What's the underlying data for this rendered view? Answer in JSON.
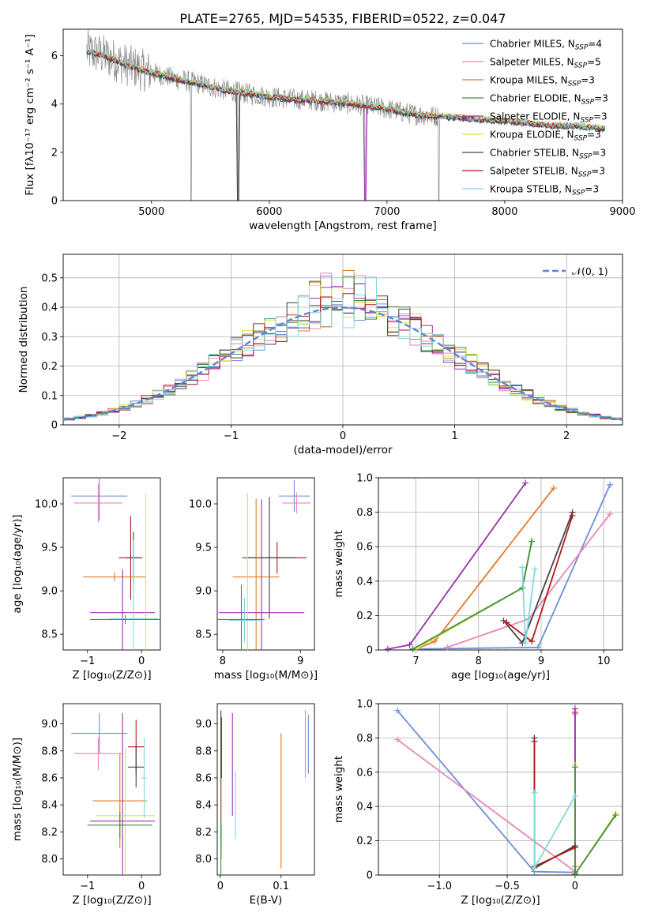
{
  "figure": {
    "title": "PLATE=2765, MJD=54535, FIBERID=0522, z=0.047"
  },
  "chart_data": [
    {
      "type": "line",
      "id": "spectrum",
      "xlabel": "wavelength [Angstrom, rest frame]",
      "ylabel": "Flux [fλ10⁻¹⁷ erg cm⁻² s⁻¹ A⁻¹]",
      "xlim": [
        4250,
        9000
      ],
      "ylim": [
        0,
        7.1
      ],
      "xticks": [
        5000,
        6000,
        7000,
        8000,
        9000
      ],
      "yticks": [
        0,
        2,
        4,
        6
      ],
      "grid": false,
      "legend_position": "upper-right",
      "legend": [
        {
          "label": "Chabrier MILES, N_SSP=4",
          "color": "#6b8fd6"
        },
        {
          "label": "Salpeter MILES, N_SSP=5",
          "color": "#e886b3"
        },
        {
          "label": "Kroupa MILES, N_SSP=3",
          "color": "#e07b2a"
        },
        {
          "label": "Chabrier ELODIE, N_SSP=3",
          "color": "#3f8f3f"
        },
        {
          "label": "Salpeter ELODIE, N_SSP=3",
          "color": "#9b2fae"
        },
        {
          "label": "Kroupa ELODIE, N_SSP=3",
          "color": "#d9e44a"
        },
        {
          "label": "Chabrier STELIB, N_SSP=3",
          "color": "#444444"
        },
        {
          "label": "Salpeter STELIB, N_SSP=3",
          "color": "#b01a1a"
        },
        {
          "label": "Kroupa STELIB, N_SSP=3",
          "color": "#7fd9dc"
        }
      ],
      "data_color": "#888888",
      "model_trace": {
        "x": [
          4450,
          4600,
          4800,
          5000,
          5200,
          5400,
          5600,
          5800,
          6000,
          6200,
          6400,
          6600,
          6800,
          7000,
          7200,
          7400,
          7600,
          7800,
          8000,
          8200,
          8400,
          8600,
          8800
        ],
        "y": [
          6.2,
          6.0,
          5.6,
          5.3,
          5.05,
          4.85,
          4.6,
          4.45,
          4.3,
          4.2,
          4.15,
          4.05,
          3.95,
          3.8,
          3.6,
          3.5,
          3.45,
          3.35,
          3.3,
          3.2,
          3.1,
          3.1,
          3.0
        ]
      },
      "notable_drops_x": [
        5335,
        5735,
        6815,
        7440
      ]
    },
    {
      "type": "line",
      "id": "residuals",
      "xlabel": "(data-model)/error",
      "ylabel": "Normed distribution",
      "xlim": [
        -2.5,
        2.5
      ],
      "ylim": [
        0,
        0.58
      ],
      "xticks": [
        -2,
        -1,
        0,
        1,
        2
      ],
      "yticks": [
        0.0,
        0.1,
        0.2,
        0.3,
        0.4,
        0.5
      ],
      "grid": true,
      "legend": [
        {
          "label": "𝒩(0, 1)",
          "color": "#5b86d6"
        }
      ],
      "legend_position": "upper-right"
    },
    {
      "type": "scatter",
      "id": "age-vs-Z",
      "xlabel": "Z [log₁₀(Z/Z⊙)]",
      "ylabel": "age  [log₁₀(age/yr)]",
      "xlim": [
        -1.45,
        0.35
      ],
      "ylim": [
        8.32,
        10.3
      ],
      "xticks": [
        -1,
        0
      ],
      "yticks": [
        8.5,
        9.0,
        9.5,
        10.0
      ],
      "points": [
        {
          "x": -0.78,
          "y": 10.09,
          "xerr": 0.52,
          "yerr": 0.28,
          "color": "#6b8fd6"
        },
        {
          "x": -0.8,
          "y": 10.01,
          "xerr": 0.45,
          "yerr": 0.22,
          "color": "#e886b3"
        },
        {
          "x": -0.2,
          "y": 9.38,
          "xerr": 0.22,
          "yerr": 0.48,
          "color": "#b01a1a"
        },
        {
          "x": -0.15,
          "y": 9.38,
          "xerr": 0.12,
          "yerr": 0.3,
          "color": "#444444"
        },
        {
          "x": -0.5,
          "y": 9.16,
          "xerr": 0.58,
          "yerr": 0.05,
          "color": "#e07b2a"
        },
        {
          "x": -0.35,
          "y": 8.75,
          "xerr": 0.6,
          "yerr": 0.5,
          "color": "#9b2fae"
        },
        {
          "x": 0.08,
          "y": 8.67,
          "xerr": 0.25,
          "yerr": 1.45,
          "color": "#d9e44a"
        },
        {
          "x": -0.3,
          "y": 8.67,
          "xerr": 0.65,
          "yerr": 0.05,
          "color": "#3f8f3f"
        },
        {
          "x": -0.15,
          "y": 8.68,
          "xerr": 0.45,
          "yerr": 0.9,
          "color": "#7fd9dc"
        }
      ]
    },
    {
      "type": "scatter",
      "id": "age-vs-mass",
      "xlabel": "mass [log₁₀(M/M⊙)]",
      "ylabel": "",
      "xlim": [
        7.93,
        9.18
      ],
      "ylim": [
        8.32,
        10.3
      ],
      "xticks": [
        8,
        9
      ],
      "yticks": [
        8.5,
        9.0,
        9.5,
        10.0
      ],
      "points": [
        {
          "x": 8.92,
          "y": 10.09,
          "xerr": 0.2,
          "yerr": 0.18,
          "color": "#6b8fd6"
        },
        {
          "x": 8.95,
          "y": 10.01,
          "xerr": 0.18,
          "yerr": 0.12,
          "color": "#e886b3"
        },
        {
          "x": 8.7,
          "y": 9.38,
          "xerr": 0.38,
          "yerr": 0.18,
          "color": "#b01a1a"
        },
        {
          "x": 8.6,
          "y": 9.38,
          "xerr": 0.35,
          "yerr": 0.7,
          "color": "#444444"
        },
        {
          "x": 8.43,
          "y": 9.16,
          "xerr": 0.3,
          "yerr": 0.9,
          "color": "#e07b2a"
        },
        {
          "x": 8.5,
          "y": 8.75,
          "xerr": 0.55,
          "yerr": 1.3,
          "color": "#9b2fae"
        },
        {
          "x": 8.32,
          "y": 8.67,
          "xerr": 0.18,
          "yerr": 1.45,
          "color": "#d9e44a"
        },
        {
          "x": 8.24,
          "y": 8.67,
          "xerr": 0.3,
          "yerr": 0.4,
          "color": "#3f8f3f"
        },
        {
          "x": 8.28,
          "y": 8.66,
          "xerr": 0.2,
          "yerr": 0.26,
          "color": "#7fd9dc"
        }
      ]
    },
    {
      "type": "line",
      "id": "mass-weight-vs-age",
      "xlabel": "age  [log₁₀(age/yr)]",
      "ylabel": "mass weight",
      "xlim": [
        6.4,
        10.3
      ],
      "ylim": [
        0,
        1
      ],
      "xticks": [
        7,
        8,
        9,
        10
      ],
      "yticks": [
        0.0,
        0.2,
        0.4,
        0.6,
        0.8,
        1.0
      ],
      "grid": true,
      "series": [
        {
          "color": "#6b8fd6",
          "x": [
            6.95,
            8.95,
            10.1
          ],
          "y": [
            0.005,
            0.015,
            0.96
          ]
        },
        {
          "color": "#e886b3",
          "x": [
            7.5,
            8.8,
            10.1
          ],
          "y": [
            0.015,
            0.18,
            0.79
          ]
        },
        {
          "color": "#e07b2a",
          "x": [
            7.0,
            7.3,
            9.2
          ],
          "y": [
            0.005,
            0.05,
            0.94
          ]
        },
        {
          "color": "#9b2fae",
          "x": [
            6.55,
            6.9,
            8.75
          ],
          "y": [
            0.005,
            0.03,
            0.97
          ]
        },
        {
          "color": "#d9e44a",
          "x": [
            7.0,
            8.7,
            8.85
          ],
          "y": [
            0.005,
            0.36,
            0.64
          ]
        },
        {
          "color": "#3f8f3f",
          "x": [
            6.95,
            8.7,
            8.85
          ],
          "y": [
            0.005,
            0.36,
            0.63
          ]
        },
        {
          "color": "#444444",
          "x": [
            8.4,
            8.7,
            9.5
          ],
          "y": [
            0.17,
            0.04,
            0.8
          ]
        },
        {
          "color": "#b01a1a",
          "x": [
            8.45,
            8.85,
            9.5
          ],
          "y": [
            0.16,
            0.05,
            0.78
          ]
        },
        {
          "color": "#7fd9dc",
          "x": [
            8.7,
            8.75,
            8.9
          ],
          "y": [
            0.48,
            0.04,
            0.47
          ]
        }
      ]
    },
    {
      "type": "scatter",
      "id": "mass-vs-Z",
      "xlabel": "Z [log₁₀(Z/Z⊙)]",
      "ylabel": "mass [log₁₀(M/M⊙)]",
      "xlim": [
        -1.45,
        0.35
      ],
      "ylim": [
        7.88,
        9.15
      ],
      "xticks": [
        -1,
        0
      ],
      "yticks": [
        8.0,
        8.2,
        8.4,
        8.6,
        8.8,
        9.0
      ],
      "points": [
        {
          "x": -0.78,
          "y": 8.93,
          "xerr": 0.52,
          "yerr": 0.15,
          "color": "#6b8fd6"
        },
        {
          "x": -0.8,
          "y": 8.78,
          "xerr": 0.45,
          "yerr": 0.12,
          "color": "#e886b3"
        },
        {
          "x": -0.1,
          "y": 8.83,
          "xerr": 0.15,
          "yerr": 0.2,
          "color": "#b01a1a"
        },
        {
          "x": -0.1,
          "y": 8.68,
          "xerr": 0.15,
          "yerr": 0.15,
          "color": "#444444"
        },
        {
          "x": -0.4,
          "y": 8.43,
          "xerr": 0.5,
          "yerr": 0.35,
          "color": "#e07b2a"
        },
        {
          "x": -0.35,
          "y": 8.28,
          "xerr": 0.6,
          "yerr": 0.8,
          "color": "#9b2fae"
        },
        {
          "x": -0.3,
          "y": 8.32,
          "xerr": 0.55,
          "yerr": 0.5,
          "color": "#d9e44a"
        },
        {
          "x": -0.4,
          "y": 8.25,
          "xerr": 0.6,
          "yerr": 0.1,
          "color": "#3f8f3f"
        },
        {
          "x": 0.05,
          "y": 8.6,
          "xerr": 0.05,
          "yerr": 0.3,
          "color": "#7fd9dc"
        }
      ]
    },
    {
      "type": "scatter",
      "id": "mass-vs-EBV",
      "xlabel": "E(B-V)",
      "ylabel": "",
      "xlim": [
        -0.005,
        0.155
      ],
      "ylim": [
        7.88,
        9.15
      ],
      "xticks": [
        0.0,
        0.1
      ],
      "yticks": [
        8.0,
        8.2,
        8.4,
        8.6,
        8.8,
        9.0
      ],
      "points": [
        {
          "x": 0.145,
          "y": 8.85,
          "yerr": 0.22,
          "color": "#6b8fd6"
        },
        {
          "x": 0.14,
          "y": 8.85,
          "yerr": 0.25,
          "color": "#e886b3"
        },
        {
          "x": 0.1,
          "y": 8.43,
          "yerr": 0.5,
          "color": "#e07b2a"
        },
        {
          "x": 0.02,
          "y": 8.7,
          "yerr": 0.38,
          "color": "#9b2fae"
        },
        {
          "x": 0.002,
          "y": 8.55,
          "yerr": 0.5,
          "color": "#b01a1a"
        },
        {
          "x": 0.001,
          "y": 8.6,
          "yerr": 0.5,
          "color": "#444444"
        },
        {
          "x": 0.025,
          "y": 8.4,
          "yerr": 0.25,
          "color": "#7fd9dc"
        },
        {
          "x": 0.002,
          "y": 8.3,
          "yerr": 0.3,
          "color": "#d9e44a"
        },
        {
          "x": 0.001,
          "y": 8.05,
          "yerr": 0.2,
          "color": "#3f8f3f"
        }
      ]
    },
    {
      "type": "line",
      "id": "mass-weight-vs-Z",
      "xlabel": "Z [log₁₀(Z/Z⊙)]",
      "ylabel": "mass weight",
      "xlim": [
        -1.45,
        0.35
      ],
      "ylim": [
        0,
        1
      ],
      "xticks": [
        -1.0,
        -0.5,
        0.0
      ],
      "yticks": [
        0.0,
        0.2,
        0.4,
        0.6,
        0.8,
        1.0
      ],
      "grid": true,
      "series": [
        {
          "color": "#6b8fd6",
          "x": [
            -1.31,
            -0.3,
            0.0
          ],
          "y": [
            0.96,
            0.02,
            0.015
          ]
        },
        {
          "color": "#e886b3",
          "x": [
            -1.31,
            0.0,
            0.0
          ],
          "y": [
            0.79,
            0.02,
            0.015
          ]
        },
        {
          "color": "#e07b2a",
          "x": [
            0.0,
            0.0,
            0.0
          ],
          "y": [
            0.94,
            0.05,
            0.005
          ]
        },
        {
          "color": "#9b2fae",
          "x": [
            0.0,
            0.0,
            0.0
          ],
          "y": [
            0.97,
            0.95,
            0.005
          ]
        },
        {
          "color": "#d9e44a",
          "x": [
            0.0,
            0.0,
            0.3
          ],
          "y": [
            0.64,
            0.005,
            0.36
          ]
        },
        {
          "color": "#3f8f3f",
          "x": [
            0.0,
            0.0,
            0.3
          ],
          "y": [
            0.63,
            0.005,
            0.35
          ]
        },
        {
          "color": "#444444",
          "x": [
            -0.3,
            -0.3,
            0.0
          ],
          "y": [
            0.8,
            0.04,
            0.17
          ]
        },
        {
          "color": "#b01a1a",
          "x": [
            -0.3,
            -0.3,
            0.0
          ],
          "y": [
            0.78,
            0.05,
            0.16
          ]
        },
        {
          "color": "#7fd9dc",
          "x": [
            -0.3,
            -0.3,
            0.0
          ],
          "y": [
            0.48,
            0.04,
            0.46
          ]
        }
      ]
    }
  ]
}
